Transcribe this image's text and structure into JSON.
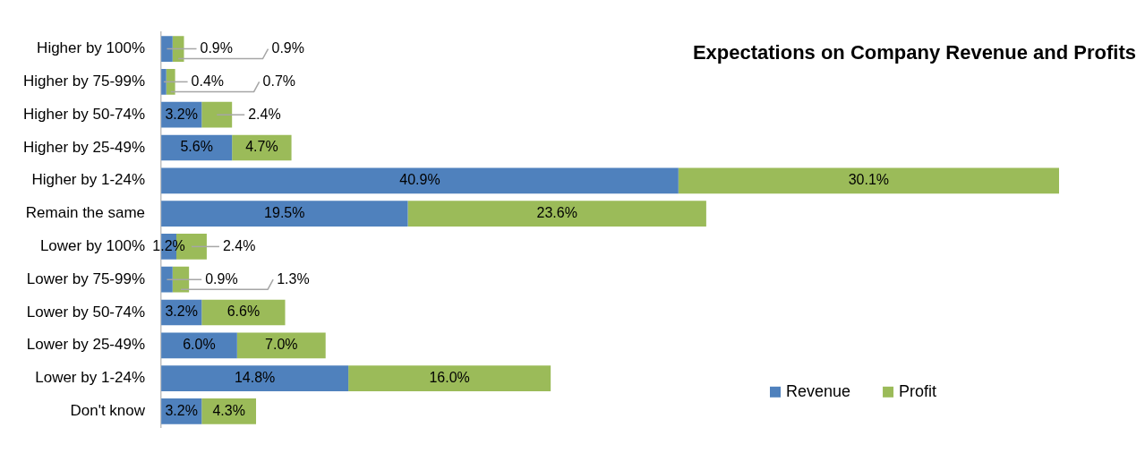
{
  "chart_data": {
    "type": "bar",
    "orientation": "horizontal",
    "stacked": true,
    "title": "Expectations on Company Revenue and Profits",
    "categories": [
      "Higher by 100%",
      "Higher by 75-99%",
      "Higher by 50-74%",
      "Higher by 25-49%",
      "Higher by 1-24%",
      "Remain the same",
      "Lower by 100%",
      "Lower by 75-99%",
      "Lower by 50-74%",
      "Lower by 25-49%",
      "Lower by 1-24%",
      "Don't know"
    ],
    "series": [
      {
        "name": "Revenue",
        "color": "#4f81bd",
        "values": [
          0.9,
          0.4,
          3.2,
          5.6,
          40.9,
          19.5,
          1.2,
          0.9,
          3.2,
          6.0,
          14.8,
          3.2
        ],
        "value_labels": [
          "0.9%",
          "0.4%",
          "3.2%",
          "5.6%",
          "40.9%",
          "19.5%",
          "1.2%",
          "0.9%",
          "3.2%",
          "6.0%",
          "14.8%",
          "3.2%"
        ]
      },
      {
        "name": "Profit",
        "color": "#9bbb59",
        "values": [
          0.9,
          0.7,
          2.4,
          4.7,
          30.1,
          23.6,
          2.4,
          1.3,
          6.6,
          7.0,
          16.0,
          4.3
        ],
        "value_labels": [
          "0.9%",
          "0.7%",
          "2.4%",
          "4.7%",
          "30.1%",
          "23.6%",
          "2.4%",
          "1.3%",
          "6.6%",
          "7.0%",
          "16.0%",
          "4.3%"
        ]
      }
    ],
    "legend": "bottom right",
    "grid": false
  }
}
